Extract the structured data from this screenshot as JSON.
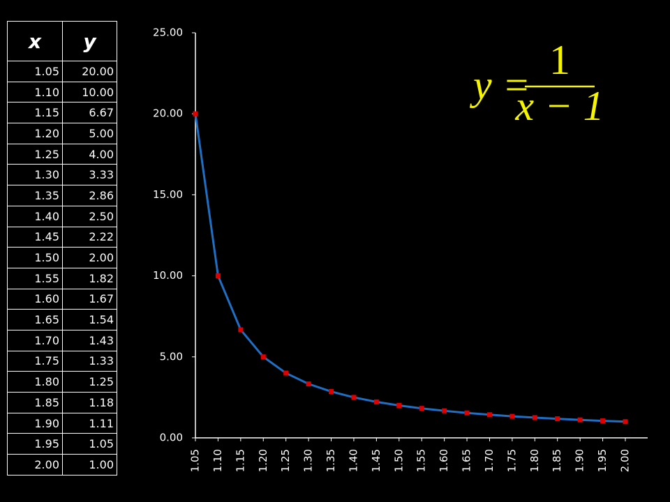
{
  "table": {
    "header": [
      "x",
      "y"
    ],
    "rows": [
      [
        "1.05",
        "20.00"
      ],
      [
        "1.10",
        "10.00"
      ],
      [
        "1.15",
        "6.67"
      ],
      [
        "1.20",
        "5.00"
      ],
      [
        "1.25",
        "4.00"
      ],
      [
        "1.30",
        "3.33"
      ],
      [
        "1.35",
        "2.86"
      ],
      [
        "1.40",
        "2.50"
      ],
      [
        "1.45",
        "2.22"
      ],
      [
        "1.50",
        "2.00"
      ],
      [
        "1.55",
        "1.82"
      ],
      [
        "1.60",
        "1.67"
      ],
      [
        "1.65",
        "1.54"
      ],
      [
        "1.70",
        "1.43"
      ],
      [
        "1.75",
        "1.33"
      ],
      [
        "1.80",
        "1.25"
      ],
      [
        "1.85",
        "1.18"
      ],
      [
        "1.90",
        "1.11"
      ],
      [
        "1.95",
        "1.05"
      ],
      [
        "2.00",
        "1.00"
      ]
    ]
  },
  "equation": {
    "left": "y =",
    "numerator": "1",
    "denominator": "x − 1"
  },
  "chart_data": {
    "type": "line",
    "categories": [
      "1.05",
      "1.10",
      "1.15",
      "1.20",
      "1.25",
      "1.30",
      "1.35",
      "1.40",
      "1.45",
      "1.50",
      "1.55",
      "1.60",
      "1.65",
      "1.70",
      "1.75",
      "1.80",
      "1.85",
      "1.90",
      "1.95",
      "2.00"
    ],
    "series": [
      {
        "color": "#1f6fc4",
        "marker_color": "#e00000",
        "values": [
          20,
          10,
          6.67,
          5,
          4,
          3.33,
          2.86,
          2.5,
          2.22,
          2,
          1.82,
          1.67,
          1.54,
          1.43,
          1.33,
          1.25,
          1.18,
          1.11,
          1.05,
          1
        ]
      }
    ],
    "ylim": [
      0,
      25
    ],
    "yticks": [
      {
        "value": 0,
        "label": "0.00"
      },
      {
        "value": 5,
        "label": "5.00"
      },
      {
        "value": 10,
        "label": "10.00"
      },
      {
        "value": 15,
        "label": "15.00"
      },
      {
        "value": 20,
        "label": "20.00"
      },
      {
        "value": 25,
        "label": "25.00"
      }
    ],
    "grid": false
  }
}
